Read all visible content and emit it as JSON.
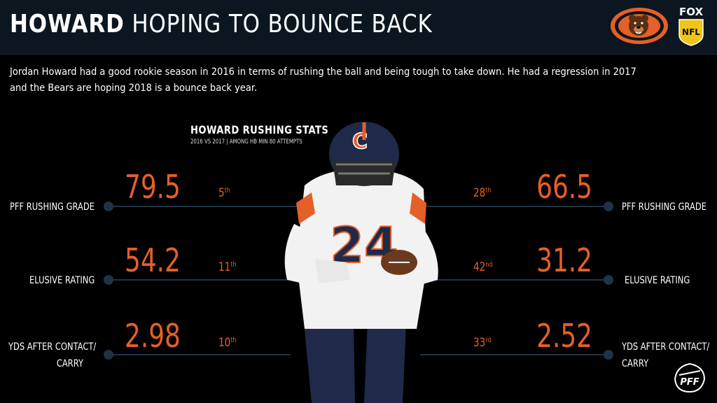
{
  "header": {
    "title_bold": "HOWARD",
    "title_rest": "HOPING TO BOUNCE BACK",
    "fox_label": "FOX",
    "nfl_label": "NFL"
  },
  "intro": "Jordan Howard had a good rookie season in 2016 in terms of rushing the ball and being tough to take down. He had a regression in 2017 and the Bears are hoping 2018 is a bounce back year.",
  "chart": {
    "title": "HOWARD RUSHING STATS",
    "subtitle": "2016 VS 2017 | AMONG HB MIN 80 ATTEMPTS"
  },
  "metrics": [
    {
      "label": "PFF RUSHING GRADE",
      "label_lines": [
        "PFF RUSHING GRADE"
      ],
      "y2016": "79.5",
      "rank2016": "5",
      "sup2016": "th",
      "y2017": "66.5",
      "rank2017": "28",
      "sup2017": "th"
    },
    {
      "label": "ELUSIVE RATING",
      "label_lines": [
        "ELUSIVE RATING"
      ],
      "y2016": "54.2",
      "rank2016": "11",
      "sup2016": "th",
      "y2017": "31.2",
      "rank2017": "42",
      "sup2017": "nd"
    },
    {
      "label": "YDS AFTER CONTACT/ CARRY",
      "label_lines": [
        "YDS AFTER CONTACT/",
        "CARRY"
      ],
      "y2016": "2.98",
      "rank2016": "10",
      "sup2016": "th",
      "y2017": "2.52",
      "rank2017": "33",
      "sup2017": "rd"
    }
  ],
  "icons": {
    "team_logo": "chicago-bears-logo",
    "network_logo": "fox-nfl-logo",
    "brand_logo": "pff-logo"
  },
  "colors": {
    "accent": "#e55f28",
    "line": "#1e3346",
    "header_bg": "#0b1620",
    "background": "#000000"
  }
}
